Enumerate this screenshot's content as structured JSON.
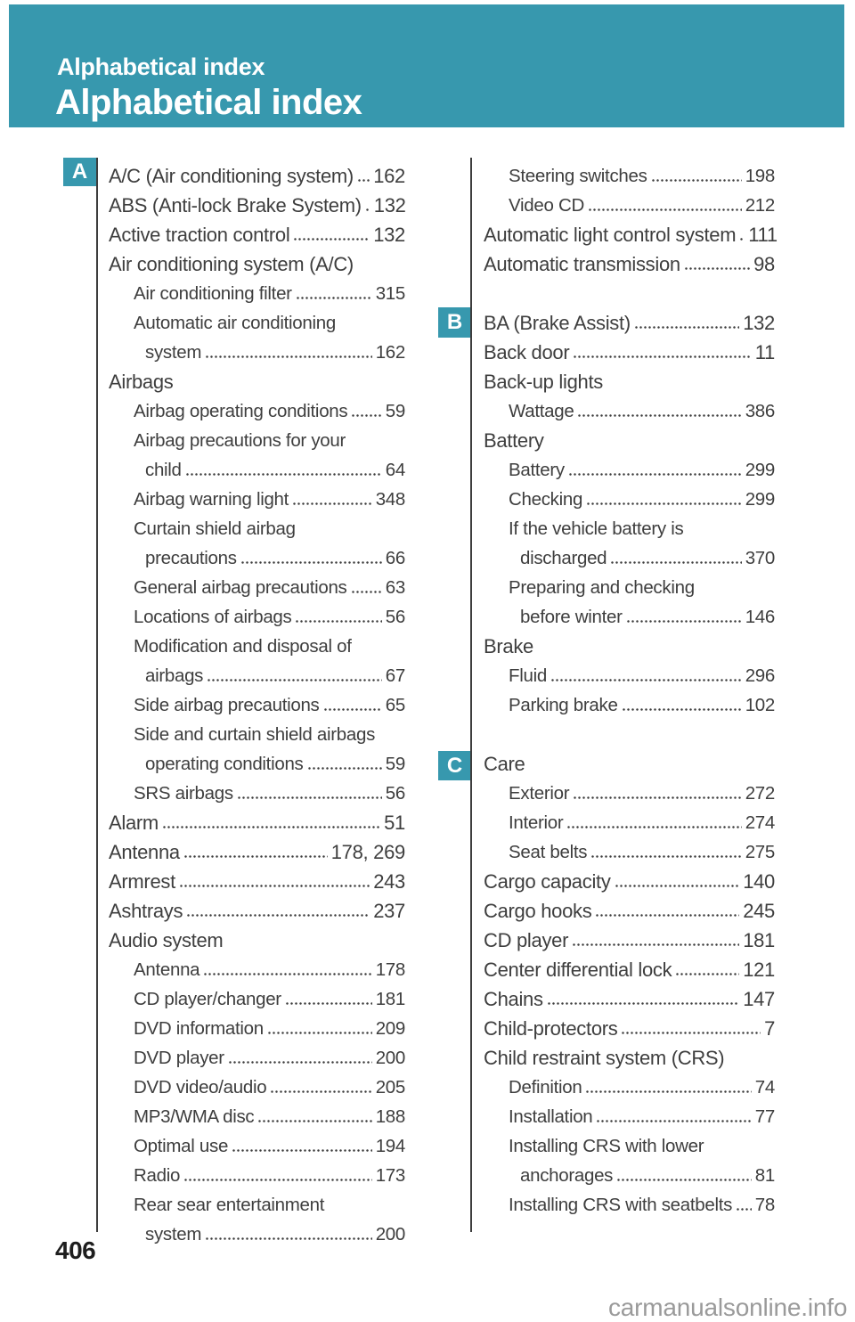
{
  "header": {
    "eyebrow": "Alphabetical index",
    "title": "Alphabetical index"
  },
  "sections": {
    "a": "A",
    "b": "B",
    "c": "C"
  },
  "footer": {
    "page_number": "406",
    "watermark": "carmanualsonline.info"
  },
  "colors": {
    "header_teal": "#3798AE",
    "body_text": "#3E3E3E",
    "watermark_gray": "#9A9A9A"
  },
  "left_column": {
    "entries": [
      {
        "text": "A/C (Air conditioning system)",
        "page": "162",
        "indent": 0
      },
      {
        "text": "ABS (Anti-lock Brake System)",
        "page": "132",
        "indent": 0
      },
      {
        "text": "Active traction control",
        "page": "132",
        "indent": 0
      },
      {
        "text": "Air conditioning system (A/C)",
        "indent": 0
      },
      {
        "text": "Air conditioning filter",
        "page": "315",
        "indent": 1
      },
      {
        "text": "Automatic air conditioning",
        "indent": 1
      },
      {
        "text": "system",
        "page": "162",
        "indent": 2
      },
      {
        "text": "Airbags",
        "indent": 0
      },
      {
        "text": "Airbag operating conditions",
        "page": "59",
        "indent": 1
      },
      {
        "text": "Airbag precautions for your",
        "indent": 1
      },
      {
        "text": "child",
        "page": "64",
        "indent": 2
      },
      {
        "text": "Airbag warning light",
        "page": "348",
        "indent": 1
      },
      {
        "text": "Curtain shield airbag",
        "indent": 1
      },
      {
        "text": "precautions",
        "page": "66",
        "indent": 2
      },
      {
        "text": "General airbag precautions",
        "page": "63",
        "indent": 1
      },
      {
        "text": "Locations of airbags",
        "page": "56",
        "indent": 1
      },
      {
        "text": "Modification and disposal of",
        "indent": 1
      },
      {
        "text": "airbags",
        "page": "67",
        "indent": 2
      },
      {
        "text": "Side airbag precautions",
        "page": "65",
        "indent": 1
      },
      {
        "text": "Side and curtain shield airbags",
        "indent": 1
      },
      {
        "text": "operating conditions",
        "page": "59",
        "indent": 2
      },
      {
        "text": "SRS airbags",
        "page": "56",
        "indent": 1
      },
      {
        "text": "Alarm",
        "page": "51",
        "indent": 0
      },
      {
        "text": "Antenna",
        "page": "178, 269",
        "indent": 0
      },
      {
        "text": "Armrest",
        "page": "243",
        "indent": 0
      },
      {
        "text": "Ashtrays",
        "page": "237",
        "indent": 0
      },
      {
        "text": "Audio system",
        "indent": 0
      },
      {
        "text": "Antenna",
        "page": "178",
        "indent": 1
      },
      {
        "text": "CD player/changer",
        "page": "181",
        "indent": 1
      },
      {
        "text": "DVD information",
        "page": "209",
        "indent": 1
      },
      {
        "text": "DVD player",
        "page": "200",
        "indent": 1
      },
      {
        "text": "DVD video/audio",
        "page": "205",
        "indent": 1
      },
      {
        "text": "MP3/WMA disc",
        "page": "188",
        "indent": 1
      },
      {
        "text": "Optimal use",
        "page": "194",
        "indent": 1
      },
      {
        "text": "Radio",
        "page": "173",
        "indent": 1
      },
      {
        "text": "Rear sear entertainment",
        "indent": 1
      },
      {
        "text": "system",
        "page": "200",
        "indent": 2
      }
    ]
  },
  "right_column": {
    "entries": [
      {
        "text": "Steering switches",
        "page": "198",
        "indent": 1
      },
      {
        "text": "Video CD",
        "page": "212",
        "indent": 1
      },
      {
        "text": "Automatic light control system",
        "page": "111",
        "indent": 0
      },
      {
        "text": "Automatic transmission",
        "page": "98",
        "indent": 0
      },
      {
        "spacer": true
      },
      {
        "text": "BA (Brake Assist)",
        "page": "132",
        "indent": 0
      },
      {
        "text": "Back door",
        "page": "11",
        "indent": 0
      },
      {
        "text": "Back-up lights",
        "indent": 0
      },
      {
        "text": "Wattage",
        "page": "386",
        "indent": 1
      },
      {
        "text": "Battery",
        "indent": 0
      },
      {
        "text": "Battery",
        "page": "299",
        "indent": 1
      },
      {
        "text": "Checking",
        "page": "299",
        "indent": 1
      },
      {
        "text": "If the vehicle battery is",
        "indent": 1
      },
      {
        "text": "discharged",
        "page": "370",
        "indent": 2
      },
      {
        "text": "Preparing and checking",
        "indent": 1
      },
      {
        "text": "before winter",
        "page": "146",
        "indent": 2
      },
      {
        "text": "Brake",
        "indent": 0
      },
      {
        "text": "Fluid",
        "page": "296",
        "indent": 1
      },
      {
        "text": "Parking brake",
        "page": "102",
        "indent": 1
      },
      {
        "spacer": true
      },
      {
        "text": "Care",
        "indent": 0
      },
      {
        "text": "Exterior",
        "page": "272",
        "indent": 1
      },
      {
        "text": "Interior",
        "page": "274",
        "indent": 1
      },
      {
        "text": "Seat belts",
        "page": "275",
        "indent": 1
      },
      {
        "text": "Cargo capacity",
        "page": "140",
        "indent": 0
      },
      {
        "text": "Cargo hooks",
        "page": "245",
        "indent": 0
      },
      {
        "text": "CD player",
        "page": "181",
        "indent": 0
      },
      {
        "text": "Center differential lock",
        "page": "121",
        "indent": 0
      },
      {
        "text": "Chains",
        "page": "147",
        "indent": 0
      },
      {
        "text": "Child-protectors",
        "page": "7",
        "indent": 0
      },
      {
        "text": "Child restraint system (CRS)",
        "indent": 0
      },
      {
        "text": "Definition",
        "page": "74",
        "indent": 1
      },
      {
        "text": "Installation",
        "page": "77",
        "indent": 1
      },
      {
        "text": "Installing CRS with lower",
        "indent": 1
      },
      {
        "text": "anchorages",
        "page": "81",
        "indent": 2
      },
      {
        "text": "Installing CRS with seatbelts",
        "page": "78",
        "indent": 1
      }
    ]
  }
}
